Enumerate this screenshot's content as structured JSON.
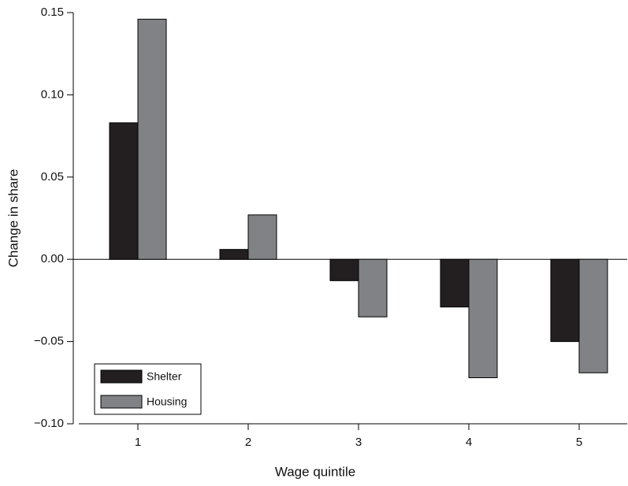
{
  "chart_data": {
    "type": "bar",
    "x_label": "Wage quintile",
    "y_label": "Change in share",
    "categories": [
      "1",
      "2",
      "3",
      "4",
      "5"
    ],
    "series": [
      {
        "name": "Shelter",
        "color": "#231f20",
        "values": [
          0.083,
          0.006,
          -0.013,
          -0.029,
          -0.05
        ]
      },
      {
        "name": "Housing",
        "color": "#808285",
        "values": [
          0.146,
          0.027,
          -0.035,
          -0.072,
          -0.069
        ]
      }
    ],
    "ylim": [
      -0.1,
      0.15
    ],
    "yticks": [
      {
        "value": -0.1,
        "label": "−0.10"
      },
      {
        "value": -0.05,
        "label": "−0.05"
      },
      {
        "value": 0,
        "label": "0.00"
      },
      0.05,
      {
        "value": 0.1,
        "label": "0.10"
      },
      0.15
    ],
    "legend": "lower left"
  }
}
